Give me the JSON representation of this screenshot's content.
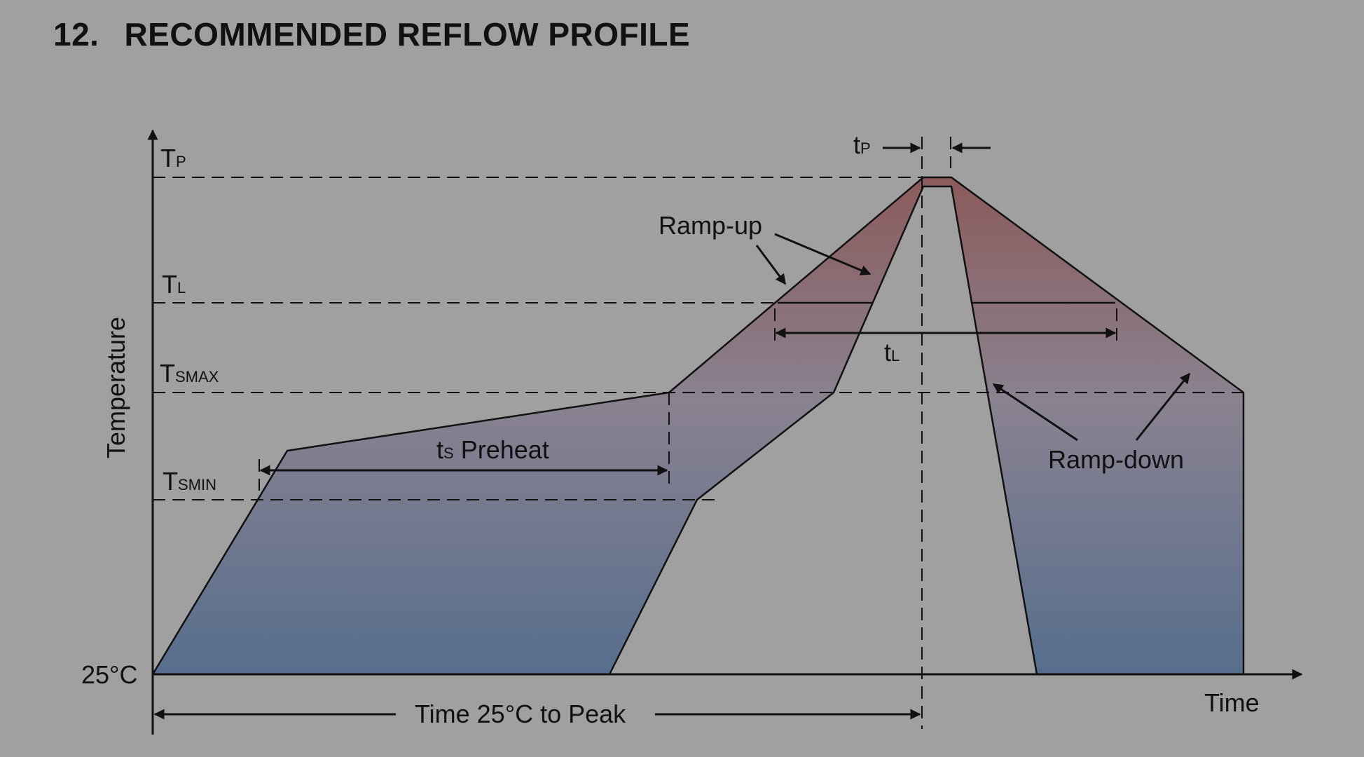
{
  "heading": {
    "number": "12.",
    "title": "RECOMMENDED REFLOW PROFILE"
  },
  "axes": {
    "y_label": "Temperature",
    "x_label": "Time",
    "origin_label": "25°C"
  },
  "levels": {
    "tp": {
      "main": "T",
      "sub": "P"
    },
    "tl": {
      "main": "T",
      "sub": "L"
    },
    "tsmax": {
      "main": "T",
      "sub": "SMAX"
    },
    "tsmin": {
      "main": "T",
      "sub": "SMIN"
    }
  },
  "annotations": {
    "tp_time": {
      "main": "t",
      "sub": "P"
    },
    "tl_time": {
      "main": "t",
      "sub": "L"
    },
    "preheat": {
      "main": "t",
      "sub": "S",
      "rest": " Preheat"
    },
    "ramp_up": "Ramp-up",
    "ramp_down": "Ramp-down",
    "time_to_peak": "Time 25°C to Peak"
  },
  "colors": {
    "background": "#a0a0a0",
    "fill_top": "#8b5f5f",
    "fill_mid": "#8a7f8a",
    "fill_bottom": "#5a6e8c",
    "line": "#111111"
  }
}
